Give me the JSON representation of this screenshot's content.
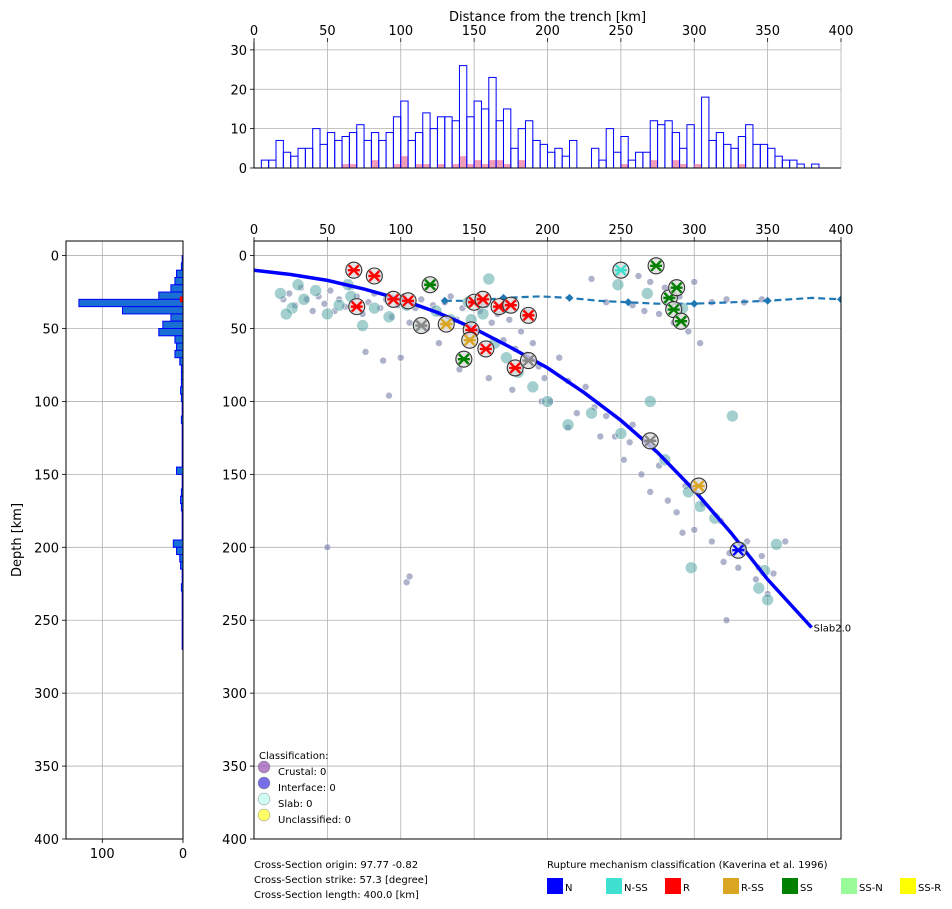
{
  "chart_data": {
    "type": "scatter",
    "top_histogram": {
      "xlabel": "Distance from the trench [km]",
      "xlim": [
        0,
        400
      ],
      "ylim": [
        0,
        32
      ],
      "x_ticks": [
        0,
        50,
        100,
        150,
        200,
        250,
        300,
        350,
        400
      ],
      "y_ticks": [
        0,
        10,
        20,
        30
      ],
      "bin_width": 5,
      "bin_starts": [
        5,
        10,
        15,
        20,
        25,
        30,
        35,
        40,
        45,
        50,
        55,
        60,
        65,
        70,
        75,
        80,
        85,
        90,
        95,
        100,
        105,
        110,
        115,
        120,
        125,
        130,
        135,
        140,
        145,
        150,
        155,
        160,
        165,
        170,
        175,
        180,
        185,
        190,
        195,
        200,
        205,
        210,
        215,
        220,
        225,
        230,
        235,
        240,
        245,
        250,
        255,
        260,
        265,
        270,
        275,
        280,
        285,
        290,
        295,
        300,
        305,
        310,
        315,
        320,
        325,
        330,
        335,
        340,
        345,
        350,
        355,
        360,
        365,
        370,
        375,
        380
      ],
      "counts": [
        2,
        2,
        7,
        4,
        3,
        5,
        5,
        10,
        6,
        9,
        7,
        8,
        9,
        11,
        7,
        9,
        7,
        9,
        13,
        17,
        7,
        9,
        14,
        10,
        13,
        13,
        12,
        26,
        13,
        17,
        15,
        23,
        12,
        15,
        5,
        10,
        12,
        7,
        6,
        4,
        5,
        3,
        7,
        0,
        0,
        5,
        2,
        10,
        4,
        8,
        2,
        4,
        4,
        12,
        11,
        12,
        9,
        5,
        11,
        0,
        18,
        7,
        9,
        6,
        5,
        8,
        11,
        6,
        6,
        5,
        3,
        2,
        2,
        1,
        0,
        1
      ],
      "highlight_counts": [
        0,
        0,
        0,
        0,
        0,
        0,
        0,
        0,
        0,
        0,
        0,
        1,
        1,
        0,
        0,
        2,
        0,
        0,
        1,
        3,
        0,
        1,
        1,
        0,
        1,
        0,
        1,
        3,
        1,
        2,
        1,
        2,
        2,
        1,
        0,
        2,
        0,
        0,
        0,
        0,
        0,
        0,
        0,
        0,
        0,
        0,
        0,
        0,
        0,
        1,
        0,
        0,
        0,
        2,
        0,
        0,
        2,
        1,
        0,
        1,
        0,
        0,
        0,
        0,
        0,
        1,
        0,
        0,
        0,
        0,
        0,
        0,
        0,
        0,
        0,
        0
      ],
      "bar_color": "#0000ff",
      "highlight_color": "#f08cab"
    },
    "depth_histogram": {
      "ylabel": "Depth [km]",
      "xlim": [
        145,
        0
      ],
      "ylim": [
        400,
        -10
      ],
      "x_ticks": [
        100,
        0
      ],
      "y_ticks": [
        0,
        50,
        100,
        150,
        200,
        250,
        300,
        350,
        400
      ],
      "bin_width": 5,
      "bin_starts": [
        0,
        5,
        10,
        15,
        20,
        25,
        30,
        35,
        40,
        45,
        50,
        55,
        60,
        65,
        70,
        75,
        80,
        85,
        90,
        95,
        100,
        105,
        110,
        115,
        120,
        125,
        130,
        135,
        140,
        145,
        150,
        155,
        160,
        165,
        170,
        175,
        180,
        185,
        190,
        195,
        200,
        205,
        210,
        215,
        220,
        225,
        230,
        235,
        240,
        245,
        250,
        255,
        260,
        265
      ],
      "counts": [
        1,
        2,
        8,
        10,
        15,
        30,
        129,
        75,
        15,
        25,
        30,
        10,
        8,
        10,
        4,
        2,
        2,
        2,
        3,
        2,
        1,
        1,
        2,
        1,
        1,
        1,
        1,
        1,
        1,
        8,
        1,
        1,
        2,
        3,
        2,
        1,
        1,
        1,
        1,
        12,
        8,
        4,
        3,
        1,
        1,
        2,
        1,
        1,
        1,
        1,
        1,
        1,
        1,
        1
      ],
      "bar_fill": "#1a6fd4",
      "bar_edge": "#0000ff",
      "marker_depth": 30,
      "marker_color": "#ff0000"
    },
    "main": {
      "xlim": [
        0,
        400
      ],
      "ylim": [
        400,
        -10
      ],
      "x_ticks": [
        0,
        50,
        100,
        150,
        200,
        250,
        300,
        350,
        400
      ],
      "y_ticks": [
        0,
        50,
        100,
        150,
        200,
        250,
        300,
        350,
        400
      ],
      "slab": {
        "label": "Slab2.0",
        "color": "#0000ff",
        "x": [
          0,
          25,
          50,
          75,
          100,
          125,
          150,
          175,
          200,
          225,
          250,
          275,
          300,
          325,
          350,
          380
        ],
        "y": [
          10,
          13,
          17,
          23,
          30,
          39,
          50,
          63,
          77,
          94,
          113,
          135,
          161,
          190,
          222,
          255
        ]
      },
      "interface_line": {
        "color": "#1f77b4",
        "x": [
          130,
          150,
          170,
          195,
          215,
          235,
          255,
          275,
          300,
          325,
          350,
          380,
          400
        ],
        "y": [
          31,
          31,
          29,
          28,
          29,
          31,
          32,
          33,
          33,
          32,
          31,
          29,
          30
        ]
      },
      "events_small": [
        [
          20,
          30
        ],
        [
          24,
          26
        ],
        [
          28,
          34
        ],
        [
          32,
          22
        ],
        [
          36,
          30
        ],
        [
          40,
          38
        ],
        [
          44,
          28
        ],
        [
          48,
          33
        ],
        [
          52,
          24
        ],
        [
          55,
          38
        ],
        [
          58,
          30
        ],
        [
          62,
          35
        ],
        [
          66,
          22
        ],
        [
          70,
          28
        ],
        [
          74,
          40
        ],
        [
          78,
          32
        ],
        [
          82,
          26
        ],
        [
          86,
          36
        ],
        [
          90,
          30
        ],
        [
          94,
          42
        ],
        [
          98,
          34
        ],
        [
          102,
          28
        ],
        [
          106,
          46
        ],
        [
          110,
          36
        ],
        [
          114,
          30
        ],
        [
          118,
          50
        ],
        [
          122,
          34
        ],
        [
          126,
          40
        ],
        [
          130,
          32
        ],
        [
          134,
          28
        ],
        [
          138,
          44
        ],
        [
          142,
          36
        ],
        [
          146,
          30
        ],
        [
          150,
          52
        ],
        [
          154,
          38
        ],
        [
          158,
          34
        ],
        [
          162,
          46
        ],
        [
          166,
          40
        ],
        [
          170,
          58
        ],
        [
          174,
          44
        ],
        [
          178,
          64
        ],
        [
          182,
          52
        ],
        [
          186,
          68
        ],
        [
          190,
          60
        ],
        [
          194,
          76
        ],
        [
          198,
          84
        ],
        [
          202,
          100
        ],
        [
          208,
          70
        ],
        [
          214,
          86
        ],
        [
          220,
          108
        ],
        [
          226,
          90
        ],
        [
          232,
          104
        ],
        [
          240,
          110
        ],
        [
          246,
          124
        ],
        [
          252,
          140
        ],
        [
          258,
          116
        ],
        [
          264,
          150
        ],
        [
          270,
          162
        ],
        [
          276,
          144
        ],
        [
          282,
          168
        ],
        [
          288,
          176
        ],
        [
          294,
          158
        ],
        [
          300,
          188
        ],
        [
          306,
          170
        ],
        [
          312,
          196
        ],
        [
          318,
          182
        ],
        [
          324,
          204
        ],
        [
          330,
          214
        ],
        [
          336,
          196
        ],
        [
          342,
          222
        ],
        [
          346,
          206
        ],
        [
          350,
          232
        ],
        [
          354,
          218
        ],
        [
          248,
          12
        ],
        [
          262,
          14
        ],
        [
          270,
          18
        ],
        [
          280,
          22
        ],
        [
          290,
          28
        ],
        [
          300,
          18
        ],
        [
          230,
          16
        ],
        [
          240,
          32
        ],
        [
          258,
          34
        ],
        [
          266,
          38
        ],
        [
          276,
          40
        ],
        [
          286,
          46
        ],
        [
          296,
          52
        ],
        [
          304,
          60
        ],
        [
          312,
          32
        ],
        [
          322,
          30
        ],
        [
          334,
          32
        ],
        [
          346,
          30
        ],
        [
          50,
          200
        ],
        [
          104,
          224
        ],
        [
          106,
          220
        ],
        [
          92,
          96
        ],
        [
          88,
          72
        ],
        [
          76,
          66
        ],
        [
          100,
          70
        ],
        [
          126,
          60
        ],
        [
          140,
          78
        ],
        [
          160,
          84
        ],
        [
          176,
          92
        ],
        [
          196,
          100
        ],
        [
          214,
          118
        ],
        [
          236,
          124
        ],
        [
          256,
          128
        ],
        [
          292,
          190
        ],
        [
          320,
          210
        ],
        [
          322,
          250
        ],
        [
          344,
          214
        ],
        [
          362,
          196
        ]
      ],
      "events_large": [
        [
          18,
          26
        ],
        [
          26,
          36
        ],
        [
          34,
          30
        ],
        [
          42,
          24
        ],
        [
          50,
          40
        ],
        [
          58,
          34
        ],
        [
          66,
          28
        ],
        [
          74,
          48
        ],
        [
          82,
          36
        ],
        [
          92,
          42
        ],
        [
          104,
          34
        ],
        [
          112,
          48
        ],
        [
          124,
          38
        ],
        [
          134,
          44
        ],
        [
          146,
          32
        ],
        [
          156,
          40
        ],
        [
          164,
          60
        ],
        [
          172,
          70
        ],
        [
          180,
          80
        ],
        [
          190,
          90
        ],
        [
          200,
          100
        ],
        [
          214,
          116
        ],
        [
          230,
          108
        ],
        [
          250,
          122
        ],
        [
          270,
          100
        ],
        [
          280,
          140
        ],
        [
          296,
          162
        ],
        [
          304,
          172
        ],
        [
          314,
          180
        ],
        [
          326,
          110
        ],
        [
          332,
          200
        ],
        [
          344,
          228
        ],
        [
          350,
          236
        ],
        [
          348,
          216
        ],
        [
          356,
          198
        ],
        [
          160,
          16
        ],
        [
          248,
          20
        ],
        [
          268,
          26
        ],
        [
          292,
          36
        ],
        [
          298,
          214
        ],
        [
          22,
          40
        ],
        [
          30,
          20
        ],
        [
          64,
          20
        ],
        [
          148,
          44
        ],
        [
          170,
          36
        ],
        [
          186,
          40
        ]
      ],
      "focal_mechanisms": [
        {
          "x": 68,
          "y": 10,
          "m": "R"
        },
        {
          "x": 82,
          "y": 14,
          "m": "R"
        },
        {
          "x": 70,
          "y": 35,
          "m": "R"
        },
        {
          "x": 95,
          "y": 30,
          "m": "R"
        },
        {
          "x": 105,
          "y": 31,
          "m": "R"
        },
        {
          "x": 120,
          "y": 20,
          "m": "SS"
        },
        {
          "x": 114,
          "y": 48,
          "m": "SR"
        },
        {
          "x": 131,
          "y": 47,
          "m": "RSS"
        },
        {
          "x": 143,
          "y": 71,
          "m": "SS"
        },
        {
          "x": 148,
          "y": 51,
          "m": "R"
        },
        {
          "x": 150,
          "y": 32,
          "m": "R"
        },
        {
          "x": 156,
          "y": 30,
          "m": "R"
        },
        {
          "x": 158,
          "y": 64,
          "m": "R"
        },
        {
          "x": 147,
          "y": 58,
          "m": "RSS"
        },
        {
          "x": 167,
          "y": 35,
          "m": "R"
        },
        {
          "x": 175,
          "y": 34,
          "m": "R"
        },
        {
          "x": 178,
          "y": 77,
          "m": "R"
        },
        {
          "x": 187,
          "y": 41,
          "m": "R"
        },
        {
          "x": 187,
          "y": 72,
          "m": "SR"
        },
        {
          "x": 250,
          "y": 10,
          "m": "NSS"
        },
        {
          "x": 274,
          "y": 7,
          "m": "SS"
        },
        {
          "x": 283,
          "y": 29,
          "m": "SS"
        },
        {
          "x": 288,
          "y": 22,
          "m": "SS"
        },
        {
          "x": 286,
          "y": 37,
          "m": "SS"
        },
        {
          "x": 291,
          "y": 45,
          "m": "SS"
        },
        {
          "x": 270,
          "y": 127,
          "m": "SR"
        },
        {
          "x": 303,
          "y": 158,
          "m": "RSS"
        },
        {
          "x": 330,
          "y": 202,
          "m": "N"
        }
      ],
      "classification": {
        "title": "Classification:",
        "entries": [
          {
            "label": "Crustal: 0",
            "color": "#9b59b6"
          },
          {
            "label": "Interface: 0",
            "color": "#4a3cdb"
          },
          {
            "label": "Slab: 0",
            "color": "#bffcef"
          },
          {
            "label": "Unclassified: 0",
            "color": "#ffff33"
          }
        ]
      }
    },
    "section_info": [
      "Cross-Section origin: 97.77 -0.82",
      "Cross-Section strike: 57.3 [degree]",
      "Cross-Section length: 400.0 [km]"
    ],
    "mechanism_legend": {
      "title": "Rupture mechanism classification (Kaverina et al. 1996)",
      "entries": [
        {
          "label": "N",
          "color": "#0000ff"
        },
        {
          "label": "N-SS",
          "color": "#40e0d0"
        },
        {
          "label": "R",
          "color": "#ff0000"
        },
        {
          "label": "R-SS",
          "color": "#daa520"
        },
        {
          "label": "SS",
          "color": "#008000"
        },
        {
          "label": "SS-N",
          "color": "#98fb98"
        },
        {
          "label": "SS-R",
          "color": "#ffff00"
        }
      ]
    }
  }
}
